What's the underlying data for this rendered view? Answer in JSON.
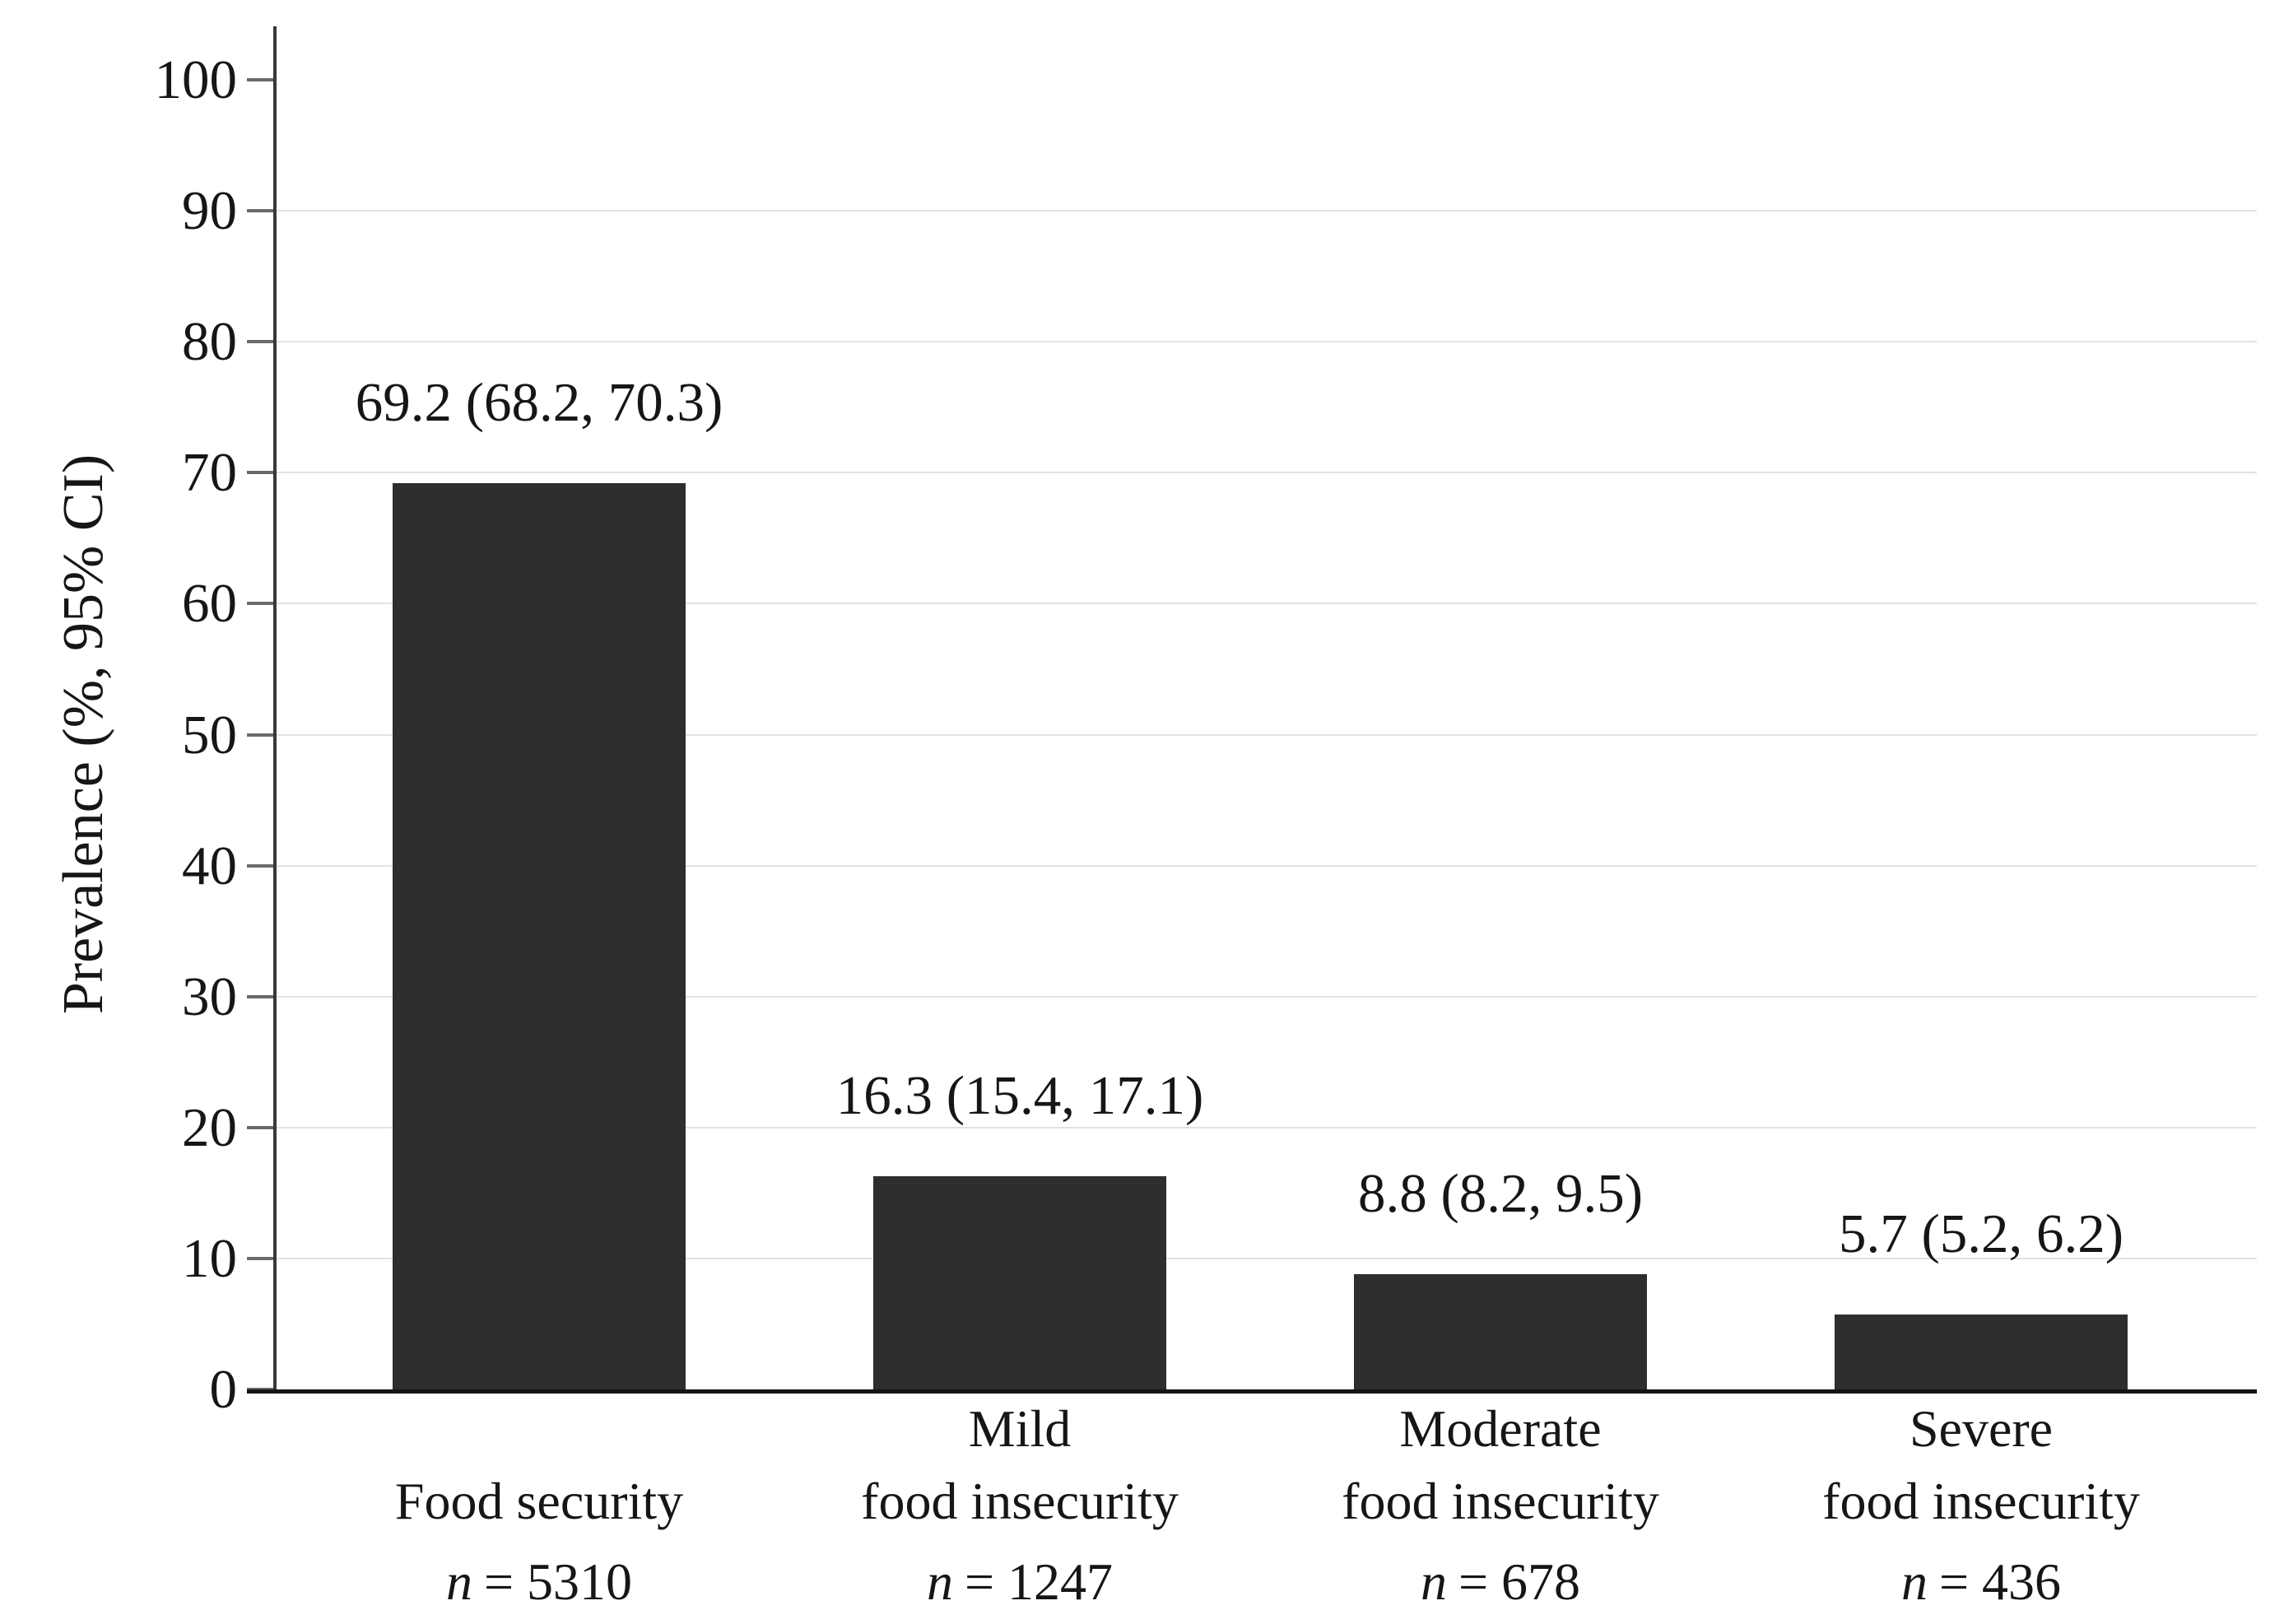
{
  "chart_data": {
    "type": "bar",
    "title": "",
    "xlabel": "",
    "ylabel": "Prevalence (%, 95% CI)",
    "ylim": [
      0,
      100
    ],
    "yticks": [
      0,
      10,
      20,
      30,
      40,
      50,
      60,
      70,
      80,
      90,
      100
    ],
    "grid": "horizontal light gridlines at 10 through 90, none at 100",
    "legend": "none",
    "bar_color": "#2e2e2e",
    "axis_color": "#383838",
    "baseline_color": "#141414",
    "tick_color": "#6a6a6a",
    "gridline_color": "#e2e2e2",
    "n_symbol": "n",
    "categories": [
      {
        "name_lines": [
          "Food security"
        ],
        "value": 69.2,
        "ci_low": 68.2,
        "ci_high": 70.3,
        "value_label": "69.2 (68.2, 70.3)",
        "n": 5310,
        "n_text": "= 5310"
      },
      {
        "name_lines": [
          "Mild",
          "food insecurity"
        ],
        "value": 16.3,
        "ci_low": 15.4,
        "ci_high": 17.1,
        "value_label": "16.3 (15.4, 17.1)",
        "n": 1247,
        "n_text": "= 1247"
      },
      {
        "name_lines": [
          "Moderate",
          "food insecurity"
        ],
        "value": 8.8,
        "ci_low": 8.2,
        "ci_high": 9.5,
        "value_label": "8.8 (8.2, 9.5)",
        "n": 678,
        "n_text": "= 678"
      },
      {
        "name_lines": [
          "Severe",
          "food insecurity"
        ],
        "value": 5.7,
        "ci_low": 5.2,
        "ci_high": 6.2,
        "value_label": "5.7 (5.2, 6.2)",
        "n": 436,
        "n_text": "= 436"
      }
    ]
  }
}
